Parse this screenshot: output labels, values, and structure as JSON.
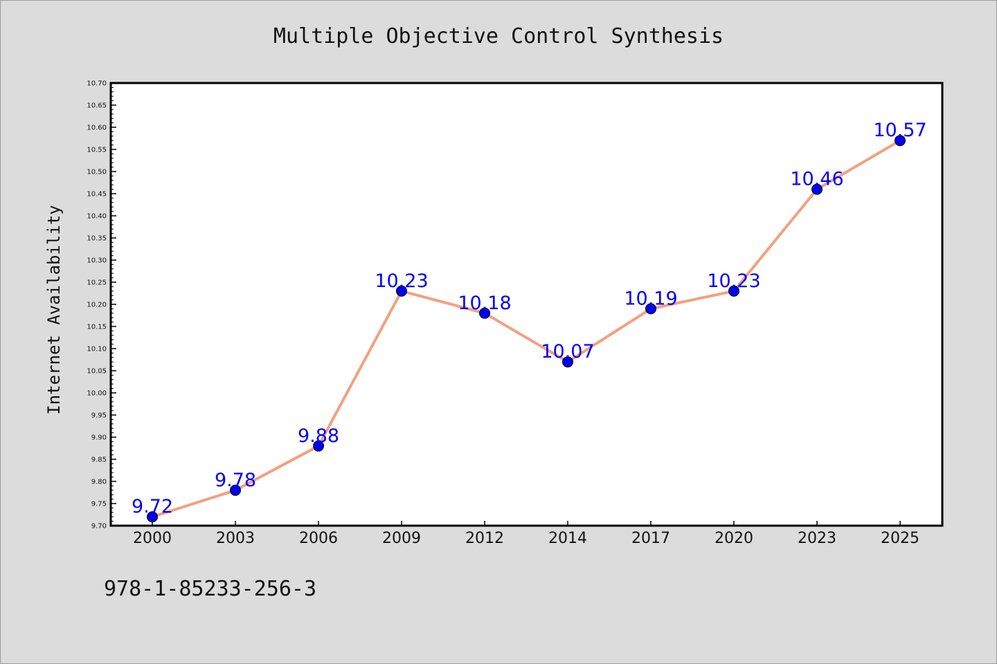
{
  "chart_data": {
    "type": "line",
    "title": "Multiple Objective Control Synthesis",
    "xlabel": "",
    "ylabel": "Internet Availability",
    "categories": [
      "2000",
      "2003",
      "2006",
      "2009",
      "2012",
      "2014",
      "2017",
      "2020",
      "2023",
      "2025"
    ],
    "series": [
      {
        "values": [
          9.72,
          9.78,
          9.88,
          10.23,
          10.18,
          10.07,
          10.19,
          10.23,
          10.46,
          10.57
        ],
        "line_color": "#f4a07e",
        "marker_color": "#0000ee"
      }
    ],
    "data_labels": [
      "9.72",
      "9.78",
      "9.88",
      "10.23",
      "10.18",
      "10.07",
      "10.19",
      "10.23",
      "10.46",
      "10.57"
    ],
    "y_ticks": [
      "9.70",
      "9.75",
      "9.80",
      "9.85",
      "9.90",
      "9.95",
      "10.00",
      "10.05",
      "10.10",
      "10.15",
      "10.20",
      "10.25",
      "10.30",
      "10.35",
      "10.40",
      "10.45",
      "10.50",
      "10.55",
      "10.60",
      "10.65",
      "10.70"
    ],
    "ylim": [
      9.7,
      10.7
    ],
    "grid": false,
    "legend": "none",
    "label_color": "#0000ff"
  },
  "footer": {
    "isbn": "978-1-85233-256-3"
  }
}
